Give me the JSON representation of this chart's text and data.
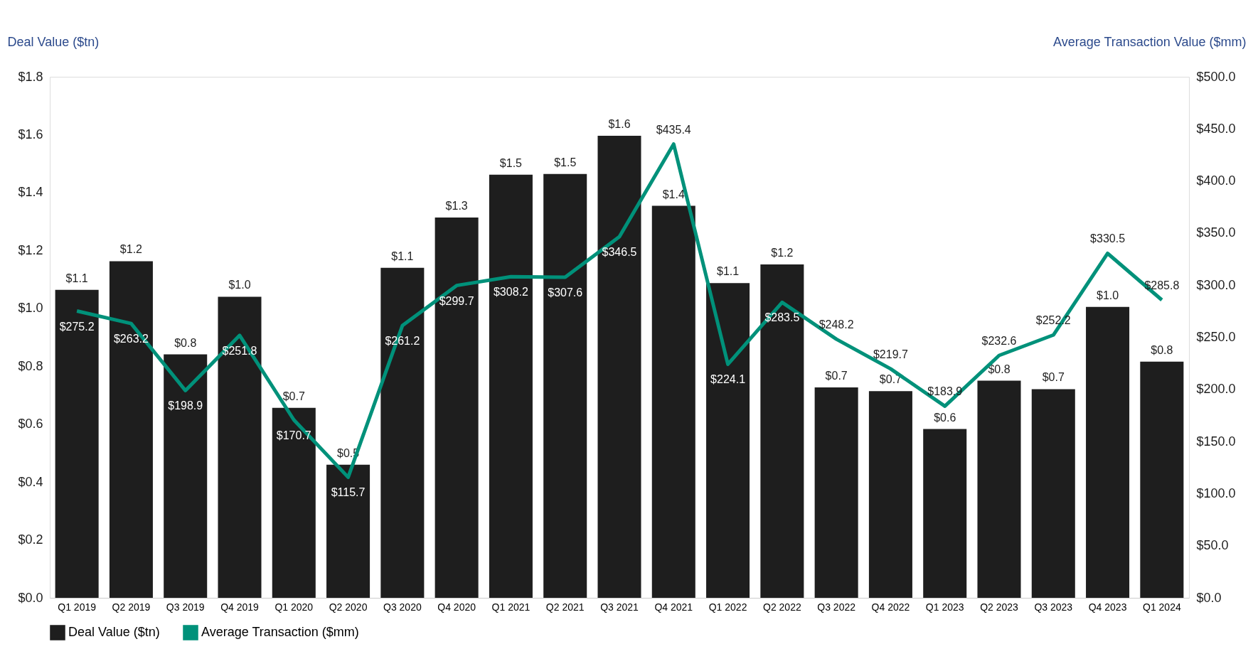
{
  "chart_data": {
    "type": "bar",
    "categories": [
      "Q1 2019",
      "Q2 2019",
      "Q3 2019",
      "Q4 2019",
      "Q1 2020",
      "Q2 2020",
      "Q3 2020",
      "Q4 2020",
      "Q1 2021",
      "Q2 2021",
      "Q3 2021",
      "Q4 2021",
      "Q1 2022",
      "Q2 2022",
      "Q3 2022",
      "Q4 2022",
      "Q1 2023",
      "Q2 2023",
      "Q3 2023",
      "Q4 2023",
      "Q1 2024"
    ],
    "series": [
      {
        "name": "Deal Value ($tn)",
        "color": "#1e1e1e",
        "values": [
          1.064,
          1.163,
          0.841,
          1.04,
          0.656,
          0.46,
          1.14,
          1.314,
          1.462,
          1.464,
          1.596,
          1.354,
          1.087,
          1.152,
          0.727,
          0.714,
          0.583,
          0.75,
          0.721,
          1.005,
          0.816
        ],
        "value_labels": [
          "$1.1",
          "$1.2",
          "$0.8",
          "$1.0",
          "$0.7",
          "$0.5",
          "$1.1",
          "$1.3",
          "$1.5",
          "$1.5",
          "$1.6",
          "$1.4",
          "$1.1",
          "$1.2",
          "$0.7",
          "$0.7",
          "$0.6",
          "$0.8",
          "$0.7",
          "$1.0",
          "$0.8"
        ]
      },
      {
        "name": "Average Transaction ($mm)",
        "type": "line",
        "axis": "y2",
        "color": "#00917a",
        "line_style": "solid",
        "values": [
          275.2,
          263.2,
          198.9,
          251.8,
          170.7,
          115.7,
          261.2,
          299.7,
          308.2,
          307.6,
          346.5,
          435.4,
          224.1,
          283.5,
          248.2,
          219.7,
          183.9,
          232.6,
          252.2,
          330.5,
          285.8
        ],
        "value_labels": [
          "$275.2",
          "$263.2",
          "$198.9",
          "$251.8",
          "$170.7",
          "$115.7",
          "$261.2",
          "$299.7",
          "$308.2",
          "$307.6",
          "$346.5",
          "$435.4",
          "$224.1",
          "$283.5",
          "$248.2",
          "$219.7",
          "$183.9",
          "$232.6",
          "$252.2",
          "$330.5",
          "$285.8"
        ]
      }
    ],
    "ylabel": "Deal Value ($tn)",
    "y2label": "Average Transaction Value ($mm)",
    "ylim": [
      0,
      1.8
    ],
    "yticks": [
      {
        "value": 0,
        "label": "$0.0"
      },
      {
        "value": 0.2,
        "label": "$0.2"
      },
      {
        "value": 0.4,
        "label": "$0.4"
      },
      {
        "value": 0.6,
        "label": "$0.6"
      },
      {
        "value": 0.8,
        "label": "$0.8"
      },
      {
        "value": 1.0,
        "label": "$1.0"
      },
      {
        "value": 1.2,
        "label": "$1.2"
      },
      {
        "value": 1.4,
        "label": "$1.4"
      },
      {
        "value": 1.6,
        "label": "$1.6"
      },
      {
        "value": 1.8,
        "label": "$1.8"
      }
    ],
    "y2lim": [
      0,
      500
    ],
    "y2ticks": [
      {
        "value": 0,
        "label": "$0.0"
      },
      {
        "value": 50,
        "label": "$50.0"
      },
      {
        "value": 100,
        "label": "$100.0"
      },
      {
        "value": 150,
        "label": "$150.0"
      },
      {
        "value": 200,
        "label": "$200.0"
      },
      {
        "value": 250,
        "label": "$250.0"
      },
      {
        "value": 300,
        "label": "$300.0"
      },
      {
        "value": 350,
        "label": "$350.0"
      },
      {
        "value": 400,
        "label": "$400.0"
      },
      {
        "value": 450,
        "label": "$450.0"
      },
      {
        "value": 500,
        "label": "$500.0"
      }
    ],
    "grid": false,
    "legend": "bottom",
    "marker": "none"
  }
}
